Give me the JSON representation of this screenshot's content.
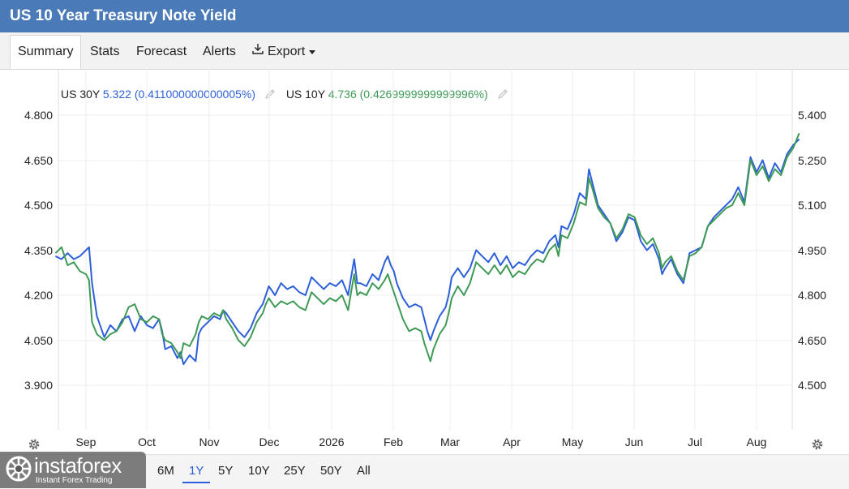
{
  "header": {
    "title": "US 10 Year Treasury Note Yield"
  },
  "tabs": [
    {
      "label": "Summary",
      "active": true
    },
    {
      "label": "Stats",
      "active": false
    },
    {
      "label": "Forecast",
      "active": false
    },
    {
      "label": "Alerts",
      "active": false
    },
    {
      "label": "Export",
      "active": false,
      "icon": "download-icon",
      "has_caret": true
    }
  ],
  "legend": [
    {
      "name": "US 30Y",
      "value": "5.322",
      "change": "(0.411000000000005%)",
      "color": "#2c5fd9"
    },
    {
      "name": "US 10Y",
      "value": "4.736",
      "change": "(0.4269999999999996%)",
      "color": "#3f9a55"
    }
  ],
  "range_buttons": [
    {
      "label": "6M",
      "active": false
    },
    {
      "label": "1Y",
      "active": true
    },
    {
      "label": "5Y",
      "active": false
    },
    {
      "label": "10Y",
      "active": false
    },
    {
      "label": "25Y",
      "active": false
    },
    {
      "label": "50Y",
      "active": false
    },
    {
      "label": "All",
      "active": false
    }
  ],
  "logo": {
    "brand": "instaforex",
    "tagline": "Instant Forex Trading"
  },
  "chart_data": {
    "type": "line",
    "grid": true,
    "x_tick_labels": [
      "Sep",
      "Oct",
      "Nov",
      "Dec",
      "2026",
      "Feb",
      "Mar",
      "Apr",
      "May",
      "Jun",
      "Jul",
      "Aug"
    ],
    "left_axis": {
      "ticks": [
        "4.800",
        "4.650",
        "4.500",
        "4.350",
        "4.200",
        "4.050",
        "3.900"
      ],
      "ylim": [
        3.8,
        4.9
      ],
      "series": "US 10Y"
    },
    "right_axis": {
      "ticks": [
        "5.400",
        "5.250",
        "5.100",
        "4.950",
        "4.800",
        "4.650",
        "4.500"
      ],
      "ylim": [
        4.4,
        5.5
      ],
      "series": "US 30Y"
    },
    "month_index": [
      0,
      1,
      2,
      3,
      4,
      5,
      6,
      7,
      8,
      9,
      10,
      11,
      12
    ],
    "series": [
      {
        "name": "US 30Y",
        "axis": "right",
        "color": "#2c5fd9",
        "points": [
          [
            -0.5,
            4.93
          ],
          [
            -0.4,
            4.92
          ],
          [
            -0.3,
            4.94
          ],
          [
            -0.2,
            4.92
          ],
          [
            -0.1,
            4.93
          ],
          [
            0.0,
            4.95
          ],
          [
            0.05,
            4.96
          ],
          [
            0.1,
            4.84
          ],
          [
            0.18,
            4.73
          ],
          [
            0.3,
            4.66
          ],
          [
            0.4,
            4.7
          ],
          [
            0.5,
            4.68
          ],
          [
            0.6,
            4.72
          ],
          [
            0.7,
            4.73
          ],
          [
            0.8,
            4.68
          ],
          [
            0.9,
            4.73
          ],
          [
            1.0,
            4.7
          ],
          [
            1.1,
            4.69
          ],
          [
            1.2,
            4.72
          ],
          [
            1.25,
            4.68
          ],
          [
            1.3,
            4.62
          ],
          [
            1.4,
            4.63
          ],
          [
            1.5,
            4.59
          ],
          [
            1.55,
            4.61
          ],
          [
            1.6,
            4.57
          ],
          [
            1.7,
            4.6
          ],
          [
            1.8,
            4.58
          ],
          [
            1.85,
            4.67
          ],
          [
            1.9,
            4.69
          ],
          [
            2.0,
            4.71
          ],
          [
            2.1,
            4.73
          ],
          [
            2.2,
            4.72
          ],
          [
            2.25,
            4.75
          ],
          [
            2.3,
            4.74
          ],
          [
            2.4,
            4.71
          ],
          [
            2.5,
            4.68
          ],
          [
            2.6,
            4.66
          ],
          [
            2.7,
            4.69
          ],
          [
            2.8,
            4.74
          ],
          [
            2.9,
            4.77
          ],
          [
            2.95,
            4.8
          ],
          [
            3.0,
            4.83
          ],
          [
            3.1,
            4.8
          ],
          [
            3.2,
            4.84
          ],
          [
            3.3,
            4.82
          ],
          [
            3.4,
            4.83
          ],
          [
            3.5,
            4.81
          ],
          [
            3.6,
            4.8
          ],
          [
            3.7,
            4.86
          ],
          [
            3.8,
            4.84
          ],
          [
            3.9,
            4.82
          ],
          [
            4.0,
            4.84
          ],
          [
            4.1,
            4.83
          ],
          [
            4.2,
            4.85
          ],
          [
            4.3,
            4.8
          ],
          [
            4.35,
            4.86
          ],
          [
            4.4,
            4.92
          ],
          [
            4.45,
            4.84
          ],
          [
            4.5,
            4.84
          ],
          [
            4.6,
            4.83
          ],
          [
            4.7,
            4.87
          ],
          [
            4.8,
            4.85
          ],
          [
            4.9,
            4.91
          ],
          [
            4.95,
            4.93
          ],
          [
            5.0,
            4.9
          ],
          [
            5.05,
            4.88
          ],
          [
            5.1,
            4.84
          ],
          [
            5.2,
            4.79
          ],
          [
            5.3,
            4.76
          ],
          [
            5.4,
            4.77
          ],
          [
            5.5,
            4.76
          ],
          [
            5.55,
            4.72
          ],
          [
            5.6,
            4.68
          ],
          [
            5.65,
            4.65
          ],
          [
            5.7,
            4.68
          ],
          [
            5.8,
            4.73
          ],
          [
            5.9,
            4.76
          ],
          [
            5.95,
            4.8
          ],
          [
            6.0,
            4.86
          ],
          [
            6.1,
            4.89
          ],
          [
            6.2,
            4.86
          ],
          [
            6.3,
            4.89
          ],
          [
            6.4,
            4.95
          ],
          [
            6.5,
            4.93
          ],
          [
            6.6,
            4.91
          ],
          [
            6.7,
            4.94
          ],
          [
            6.8,
            4.9
          ],
          [
            6.9,
            4.93
          ],
          [
            7.0,
            4.89
          ],
          [
            7.1,
            4.91
          ],
          [
            7.2,
            4.9
          ],
          [
            7.3,
            4.93
          ],
          [
            7.4,
            4.95
          ],
          [
            7.5,
            4.94
          ],
          [
            7.6,
            4.98
          ],
          [
            7.7,
            5.0
          ],
          [
            7.75,
            4.96
          ],
          [
            7.8,
            5.03
          ],
          [
            7.9,
            5.02
          ],
          [
            8.0,
            5.07
          ],
          [
            8.1,
            5.14
          ],
          [
            8.2,
            5.12
          ],
          [
            8.25,
            5.22
          ],
          [
            8.3,
            5.18
          ],
          [
            8.4,
            5.1
          ],
          [
            8.5,
            5.07
          ],
          [
            8.6,
            5.04
          ],
          [
            8.7,
            4.98
          ],
          [
            8.8,
            5.01
          ],
          [
            8.9,
            5.06
          ],
          [
            9.0,
            5.05
          ],
          [
            9.1,
            4.98
          ],
          [
            9.2,
            4.95
          ],
          [
            9.3,
            4.97
          ],
          [
            9.4,
            4.92
          ],
          [
            9.45,
            4.87
          ],
          [
            9.5,
            4.89
          ],
          [
            9.6,
            4.92
          ],
          [
            9.7,
            4.87
          ],
          [
            9.8,
            4.84
          ],
          [
            9.9,
            4.94
          ],
          [
            10.0,
            4.95
          ],
          [
            10.1,
            4.96
          ],
          [
            10.2,
            5.03
          ],
          [
            10.3,
            5.06
          ],
          [
            10.4,
            5.08
          ],
          [
            10.5,
            5.1
          ],
          [
            10.6,
            5.12
          ],
          [
            10.7,
            5.16
          ],
          [
            10.8,
            5.11
          ],
          [
            10.9,
            5.26
          ],
          [
            11.0,
            5.21
          ],
          [
            11.1,
            5.25
          ],
          [
            11.2,
            5.19
          ],
          [
            11.3,
            5.24
          ],
          [
            11.4,
            5.21
          ],
          [
            11.5,
            5.27
          ],
          [
            11.6,
            5.3
          ],
          [
            11.7,
            5.32
          ]
        ]
      },
      {
        "name": "US 10Y",
        "axis": "left",
        "color": "#3f9a55",
        "points": [
          [
            -0.5,
            4.34
          ],
          [
            -0.4,
            4.36
          ],
          [
            -0.3,
            4.3
          ],
          [
            -0.2,
            4.31
          ],
          [
            -0.1,
            4.28
          ],
          [
            0.0,
            4.27
          ],
          [
            0.05,
            4.25
          ],
          [
            0.1,
            4.11
          ],
          [
            0.18,
            4.07
          ],
          [
            0.3,
            4.05
          ],
          [
            0.4,
            4.07
          ],
          [
            0.5,
            4.08
          ],
          [
            0.6,
            4.11
          ],
          [
            0.7,
            4.16
          ],
          [
            0.8,
            4.17
          ],
          [
            0.9,
            4.12
          ],
          [
            1.0,
            4.11
          ],
          [
            1.1,
            4.13
          ],
          [
            1.2,
            4.12
          ],
          [
            1.25,
            4.07
          ],
          [
            1.3,
            4.05
          ],
          [
            1.4,
            4.04
          ],
          [
            1.5,
            4.01
          ],
          [
            1.55,
            3.99
          ],
          [
            1.6,
            4.04
          ],
          [
            1.7,
            4.03
          ],
          [
            1.8,
            4.07
          ],
          [
            1.85,
            4.11
          ],
          [
            1.9,
            4.13
          ],
          [
            2.0,
            4.12
          ],
          [
            2.1,
            4.14
          ],
          [
            2.2,
            4.13
          ],
          [
            2.25,
            4.15
          ],
          [
            2.3,
            4.12
          ],
          [
            2.4,
            4.09
          ],
          [
            2.5,
            4.05
          ],
          [
            2.6,
            4.03
          ],
          [
            2.7,
            4.06
          ],
          [
            2.8,
            4.11
          ],
          [
            2.9,
            4.14
          ],
          [
            2.95,
            4.17
          ],
          [
            3.0,
            4.19
          ],
          [
            3.1,
            4.16
          ],
          [
            3.2,
            4.18
          ],
          [
            3.3,
            4.17
          ],
          [
            3.4,
            4.18
          ],
          [
            3.5,
            4.16
          ],
          [
            3.6,
            4.15
          ],
          [
            3.7,
            4.21
          ],
          [
            3.8,
            4.19
          ],
          [
            3.9,
            4.17
          ],
          [
            4.0,
            4.19
          ],
          [
            4.1,
            4.18
          ],
          [
            4.2,
            4.2
          ],
          [
            4.3,
            4.15
          ],
          [
            4.35,
            4.21
          ],
          [
            4.4,
            4.27
          ],
          [
            4.45,
            4.2
          ],
          [
            4.5,
            4.21
          ],
          [
            4.6,
            4.2
          ],
          [
            4.7,
            4.24
          ],
          [
            4.8,
            4.22
          ],
          [
            4.9,
            4.25
          ],
          [
            4.95,
            4.27
          ],
          [
            5.0,
            4.24
          ],
          [
            5.05,
            4.21
          ],
          [
            5.1,
            4.18
          ],
          [
            5.2,
            4.12
          ],
          [
            5.3,
            4.08
          ],
          [
            5.4,
            4.09
          ],
          [
            5.5,
            4.08
          ],
          [
            5.55,
            4.04
          ],
          [
            5.6,
            4.01
          ],
          [
            5.65,
            3.98
          ],
          [
            5.7,
            4.02
          ],
          [
            5.8,
            4.07
          ],
          [
            5.9,
            4.1
          ],
          [
            5.95,
            4.14
          ],
          [
            6.0,
            4.19
          ],
          [
            6.1,
            4.23
          ],
          [
            6.2,
            4.2
          ],
          [
            6.3,
            4.24
          ],
          [
            6.4,
            4.31
          ],
          [
            6.5,
            4.29
          ],
          [
            6.6,
            4.27
          ],
          [
            6.7,
            4.3
          ],
          [
            6.8,
            4.27
          ],
          [
            6.9,
            4.3
          ],
          [
            7.0,
            4.26
          ],
          [
            7.1,
            4.28
          ],
          [
            7.2,
            4.27
          ],
          [
            7.3,
            4.3
          ],
          [
            7.4,
            4.32
          ],
          [
            7.5,
            4.31
          ],
          [
            7.6,
            4.35
          ],
          [
            7.7,
            4.37
          ],
          [
            7.75,
            4.33
          ],
          [
            7.8,
            4.4
          ],
          [
            7.9,
            4.39
          ],
          [
            8.0,
            4.44
          ],
          [
            8.1,
            4.51
          ],
          [
            8.2,
            4.5
          ],
          [
            8.25,
            4.59
          ],
          [
            8.3,
            4.56
          ],
          [
            8.4,
            4.49
          ],
          [
            8.5,
            4.46
          ],
          [
            8.6,
            4.44
          ],
          [
            8.7,
            4.39
          ],
          [
            8.8,
            4.42
          ],
          [
            8.9,
            4.47
          ],
          [
            9.0,
            4.46
          ],
          [
            9.1,
            4.4
          ],
          [
            9.2,
            4.37
          ],
          [
            9.3,
            4.39
          ],
          [
            9.4,
            4.34
          ],
          [
            9.45,
            4.29
          ],
          [
            9.5,
            4.31
          ],
          [
            9.6,
            4.33
          ],
          [
            9.7,
            4.28
          ],
          [
            9.8,
            4.25
          ],
          [
            9.9,
            4.33
          ],
          [
            10.0,
            4.34
          ],
          [
            10.1,
            4.36
          ],
          [
            10.2,
            4.43
          ],
          [
            10.3,
            4.45
          ],
          [
            10.4,
            4.47
          ],
          [
            10.5,
            4.49
          ],
          [
            10.6,
            4.5
          ],
          [
            10.7,
            4.54
          ],
          [
            10.8,
            4.5
          ],
          [
            10.9,
            4.65
          ],
          [
            11.0,
            4.6
          ],
          [
            11.1,
            4.63
          ],
          [
            11.2,
            4.58
          ],
          [
            11.3,
            4.62
          ],
          [
            11.4,
            4.6
          ],
          [
            11.5,
            4.66
          ],
          [
            11.6,
            4.69
          ],
          [
            11.7,
            4.74
          ]
        ]
      }
    ]
  }
}
